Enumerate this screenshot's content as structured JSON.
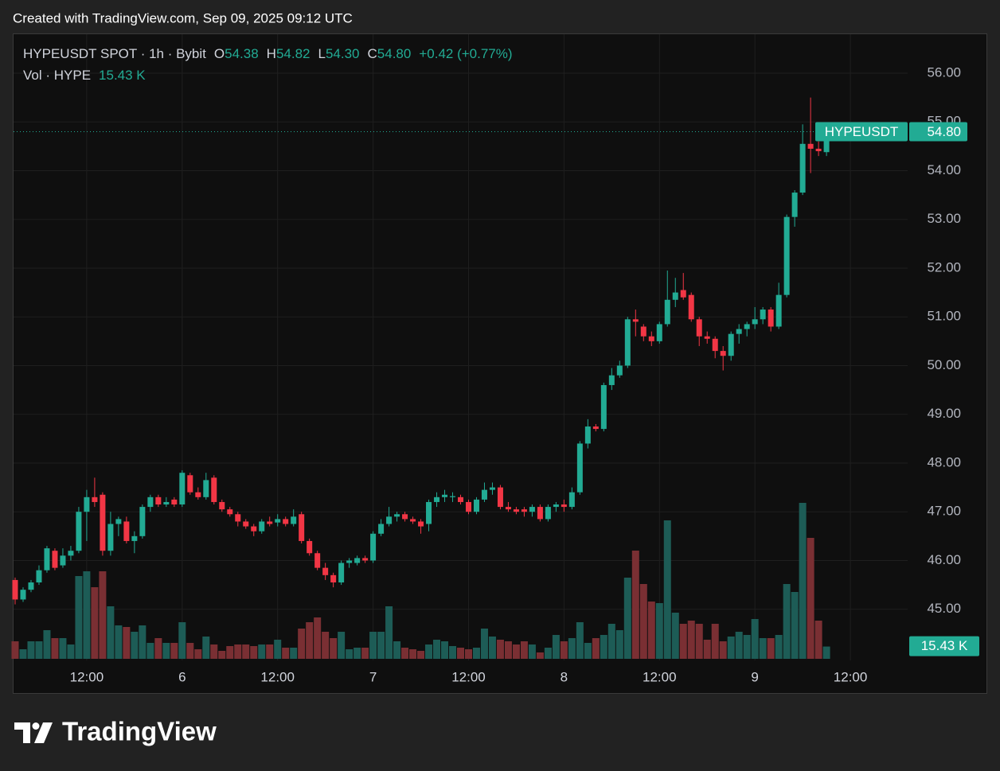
{
  "chart_data": {
    "type": "candlestick",
    "title": "Created with TradingView.com, Sep 09, 2025 09:12 UTC",
    "legend": {
      "symbol": "HYPEUSDT SPOT · 1h · Bybit",
      "o_label": "O",
      "o": "54.38",
      "h_label": "H",
      "h": "54.82",
      "l_label": "L",
      "l": "54.30",
      "c_label": "C",
      "c": "54.80",
      "change": "+0.42 (+0.77%)",
      "volume_title": "Vol · HYPE"
    },
    "symbol_tag": "HYPEUSDT",
    "last_price": {
      "value": 54.8,
      "label": "54.80"
    },
    "last_volume": {
      "value": 15430,
      "label": "15.43 K"
    },
    "up_color": "#22ab94",
    "down_color": "#f23645",
    "volume_up_color": "#1d5c56",
    "volume_down_color": "#7a2f33",
    "grid": true,
    "xlim": [
      -0.2,
      112.2
    ],
    "xticks": [
      {
        "value": 9,
        "label": "12:00"
      },
      {
        "value": 21,
        "label": "6"
      },
      {
        "value": 33,
        "label": "12:00"
      },
      {
        "value": 45,
        "label": "7"
      },
      {
        "value": 57,
        "label": "12:00"
      },
      {
        "value": 69,
        "label": "8"
      },
      {
        "value": 81,
        "label": "12:00"
      },
      {
        "value": 93,
        "label": "9"
      },
      {
        "value": 105,
        "label": "12:00"
      }
    ],
    "ylim": [
      43.95,
      56.8
    ],
    "yticks": [
      {
        "value": 45,
        "label": "45.00"
      },
      {
        "value": 46,
        "label": "46.00"
      },
      {
        "value": 47,
        "label": "47.00"
      },
      {
        "value": 48,
        "label": "48.00"
      },
      {
        "value": 49,
        "label": "49.00"
      },
      {
        "value": 50,
        "label": "50.00"
      },
      {
        "value": 51,
        "label": "51.00"
      },
      {
        "value": 52,
        "label": "52.00"
      },
      {
        "value": 53,
        "label": "53.00"
      },
      {
        "value": 54,
        "label": "54.00"
      },
      {
        "value": 55,
        "label": "55.00"
      },
      {
        "value": 56,
        "label": "56.00"
      }
    ],
    "volume_lim": [
      0,
      200000
    ],
    "open": [
      45.6,
      45.2,
      45.4,
      45.55,
      45.8,
      46.2,
      45.9,
      46.1,
      46.2,
      47.0,
      47.3,
      47.35,
      46.2,
      46.75,
      46.8,
      46.4,
      46.5,
      47.1,
      47.3,
      47.15,
      47.25,
      47.15,
      47.75,
      47.4,
      47.3,
      47.7,
      47.2,
      47.05,
      46.95,
      46.8,
      46.7,
      46.6,
      46.8,
      46.78,
      46.85,
      46.75,
      46.95,
      46.4,
      46.15,
      45.85,
      45.7,
      45.55,
      45.95,
      45.95,
      46.05,
      46.0,
      46.55,
      46.75,
      46.9,
      46.95,
      46.85,
      46.8,
      46.75,
      47.2,
      47.3,
      47.3,
      47.3,
      47.2,
      47.0,
      47.25,
      47.45,
      47.5,
      47.1,
      47.05,
      47.05,
      47.0,
      47.1,
      46.85,
      47.1,
      47.15,
      47.1,
      47.4,
      48.4,
      48.75,
      48.7,
      49.6,
      49.8,
      50.0,
      50.95,
      50.8,
      50.6,
      50.5,
      50.85,
      51.35,
      51.55,
      51.45,
      50.95,
      50.6,
      50.55,
      50.3,
      50.2,
      50.65,
      50.75,
      50.85,
      50.95,
      51.15,
      50.8,
      51.45,
      53.05,
      53.55,
      54.55,
      54.45,
      54.38
    ],
    "high": [
      45.65,
      45.45,
      45.6,
      45.9,
      46.3,
      46.25,
      46.25,
      46.3,
      47.1,
      47.45,
      47.7,
      47.4,
      47.0,
      46.9,
      46.9,
      46.6,
      47.15,
      47.35,
      47.35,
      47.3,
      47.3,
      47.85,
      47.8,
      47.5,
      47.8,
      47.75,
      47.25,
      47.1,
      47.0,
      46.85,
      46.75,
      46.85,
      46.9,
      46.95,
      46.9,
      47.05,
      47.0,
      46.45,
      46.2,
      45.95,
      45.75,
      46.0,
      46.05,
      46.1,
      46.1,
      46.6,
      46.85,
      47.1,
      47.0,
      47.0,
      46.9,
      46.85,
      47.25,
      47.4,
      47.45,
      47.4,
      47.35,
      47.25,
      47.3,
      47.6,
      47.6,
      47.55,
      47.2,
      47.1,
      47.1,
      47.15,
      47.15,
      47.15,
      47.2,
      47.25,
      47.5,
      48.45,
      48.9,
      48.8,
      49.65,
      49.95,
      50.1,
      51.0,
      51.15,
      50.85,
      50.7,
      50.9,
      51.95,
      51.8,
      51.9,
      51.5,
      51.0,
      50.7,
      50.6,
      50.4,
      50.7,
      50.85,
      50.9,
      51.2,
      51.2,
      51.2,
      51.7,
      53.1,
      53.6,
      54.95,
      55.5,
      54.6,
      54.82
    ],
    "low": [
      45.1,
      45.15,
      45.35,
      45.5,
      45.75,
      45.8,
      45.85,
      46.0,
      46.15,
      46.4,
      47.1,
      46.1,
      46.1,
      46.5,
      46.35,
      46.15,
      46.45,
      47.0,
      47.1,
      47.1,
      47.1,
      47.1,
      47.35,
      47.25,
      47.25,
      47.15,
      47.0,
      46.9,
      46.7,
      46.65,
      46.5,
      46.55,
      46.7,
      46.7,
      46.7,
      46.7,
      46.35,
      46.1,
      45.8,
      45.6,
      45.45,
      45.5,
      45.85,
      45.9,
      45.95,
      45.95,
      46.5,
      46.7,
      46.8,
      46.8,
      46.75,
      46.55,
      46.6,
      47.1,
      47.2,
      47.2,
      47.15,
      46.95,
      46.95,
      47.2,
      47.35,
      47.05,
      47.0,
      46.95,
      46.9,
      46.9,
      46.8,
      46.8,
      47.0,
      47.0,
      47.05,
      47.35,
      48.3,
      48.65,
      48.65,
      49.5,
      49.75,
      49.95,
      50.6,
      50.5,
      50.4,
      50.45,
      50.8,
      51.2,
      51.35,
      50.9,
      50.4,
      50.45,
      50.15,
      49.9,
      50.1,
      50.45,
      50.6,
      50.75,
      50.85,
      50.7,
      50.75,
      51.4,
      52.85,
      53.5,
      53.95,
      54.3,
      54.3
    ],
    "close": [
      45.2,
      45.4,
      45.55,
      45.8,
      46.25,
      45.85,
      46.1,
      46.2,
      47.0,
      47.3,
      47.2,
      46.2,
      46.75,
      46.85,
      46.4,
      46.5,
      47.1,
      47.3,
      47.15,
      47.2,
      47.15,
      47.8,
      47.4,
      47.3,
      47.65,
      47.2,
      47.05,
      46.95,
      46.8,
      46.7,
      46.6,
      46.8,
      46.75,
      46.85,
      46.75,
      46.9,
      46.4,
      46.15,
      45.85,
      45.7,
      45.55,
      45.95,
      46.0,
      46.05,
      46.0,
      46.55,
      46.75,
      46.9,
      46.95,
      46.85,
      46.8,
      46.7,
      47.2,
      47.3,
      47.35,
      47.32,
      47.2,
      47.0,
      47.25,
      47.45,
      47.5,
      47.1,
      47.05,
      47.0,
      47.0,
      47.1,
      46.85,
      47.1,
      47.15,
      47.1,
      47.4,
      48.4,
      48.75,
      48.7,
      49.6,
      49.8,
      50.0,
      50.95,
      50.9,
      50.6,
      50.5,
      50.85,
      51.35,
      51.5,
      51.4,
      50.95,
      50.6,
      50.55,
      50.3,
      50.2,
      50.65,
      50.75,
      50.85,
      50.95,
      51.15,
      50.8,
      51.45,
      53.05,
      53.55,
      54.55,
      54.45,
      54.4,
      54.8
    ],
    "volume": [
      22000,
      12000,
      22000,
      22000,
      36000,
      26000,
      26000,
      18000,
      104000,
      110000,
      90000,
      110000,
      66000,
      42000,
      40000,
      34000,
      42000,
      20000,
      26000,
      20000,
      20000,
      46000,
      20000,
      12000,
      28000,
      18000,
      10000,
      16000,
      18000,
      18000,
      16000,
      18000,
      18000,
      24000,
      14000,
      14000,
      38000,
      46000,
      52000,
      34000,
      26000,
      34000,
      12000,
      14000,
      14000,
      34000,
      34000,
      66000,
      22000,
      14000,
      12000,
      10000,
      18000,
      24000,
      22000,
      16000,
      14000,
      12000,
      14000,
      38000,
      28000,
      24000,
      22000,
      18000,
      22000,
      18000,
      8000,
      14000,
      30000,
      22000,
      26000,
      46000,
      20000,
      26000,
      30000,
      44000,
      36000,
      102000,
      136000,
      94000,
      72000,
      70000,
      174000,
      58000,
      44000,
      48000,
      44000,
      24000,
      44000,
      22000,
      28000,
      34000,
      30000,
      50000,
      26000,
      26000,
      30000,
      94000,
      84000,
      196000,
      152000,
      48000,
      15430
    ]
  },
  "footer": {
    "brand": "TradingView"
  }
}
